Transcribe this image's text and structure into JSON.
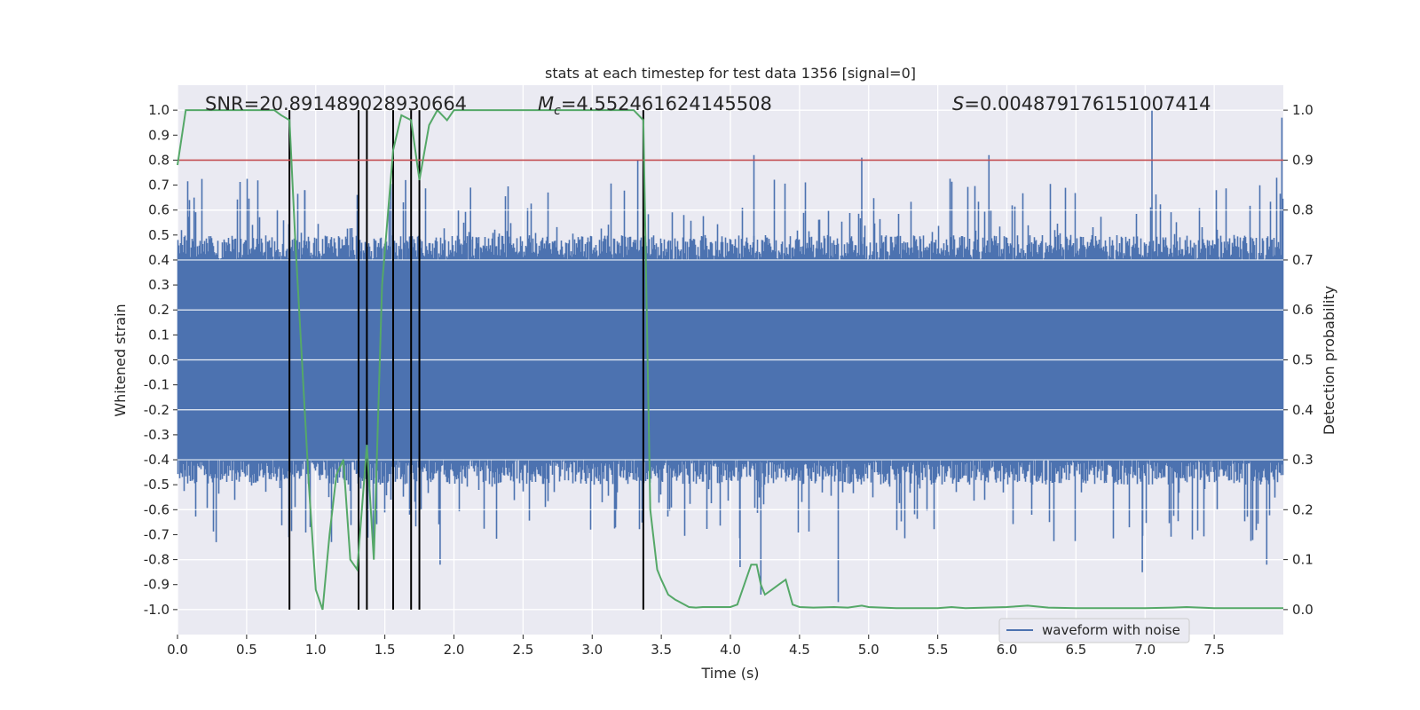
{
  "chart_data": {
    "type": "line",
    "title": "stats at each timestep for test data 1356 [signal=0]",
    "xlabel": "Time (s)",
    "ylabel_left": "Whitened strain",
    "ylabel_right": "Detection probability",
    "xlim": [
      0.0,
      8.0
    ],
    "ylim_left": [
      -1.1,
      1.1
    ],
    "ylim_right": [
      -0.05,
      1.05
    ],
    "x_ticks": [
      "0.0",
      "0.5",
      "1.0",
      "1.5",
      "2.0",
      "2.5",
      "3.0",
      "3.5",
      "4.0",
      "4.5",
      "5.0",
      "5.5",
      "6.0",
      "6.5",
      "7.0",
      "7.5"
    ],
    "y_left_ticks": [
      "1.0",
      "0.9",
      "0.8",
      "0.7",
      "0.6",
      "0.5",
      "0.4",
      "0.3",
      "0.2",
      "0.1",
      "0.0",
      "-0.1",
      "-0.2",
      "-0.3",
      "-0.4",
      "-0.5",
      "-0.6",
      "-0.7",
      "-0.8",
      "-0.9",
      "-1.0"
    ],
    "y_right_ticks": [
      "1.0",
      "0.9",
      "0.8",
      "0.7",
      "0.6",
      "0.5",
      "0.4",
      "0.3",
      "0.2",
      "0.1",
      "0.0"
    ],
    "annotations": {
      "snr": "SNR=20.891489028930664",
      "mc_symbol": "M",
      "mc_sub": "c",
      "mc_value": "=4.552461624145508",
      "s_symbol": "S",
      "s_value": "=0.004879176151007414"
    },
    "threshold": {
      "value": 0.9,
      "color": "#c44e52"
    },
    "vertical_markers": [
      0.81,
      1.31,
      1.37,
      1.56,
      1.69,
      1.75,
      3.37
    ],
    "legend": [
      {
        "label": "waveform with noise",
        "color": "#4c72b0"
      }
    ],
    "series": [
      {
        "name": "waveform with noise",
        "axis": "left",
        "color": "#4c72b0",
        "envelope": {
          "seed": 1356,
          "core_amplitude": 0.4,
          "spike_extremes": [
            {
              "x": 0.12,
              "y": 0.65
            },
            {
              "x": 0.28,
              "y": -0.73
            },
            {
              "x": 0.92,
              "y": 0.68
            },
            {
              "x": 1.65,
              "y": 0.72
            },
            {
              "x": 1.9,
              "y": -0.82
            },
            {
              "x": 2.12,
              "y": 0.69
            },
            {
              "x": 3.33,
              "y": 0.8
            },
            {
              "x": 4.07,
              "y": -0.83
            },
            {
              "x": 4.17,
              "y": 0.82
            },
            {
              "x": 4.22,
              "y": -0.94
            },
            {
              "x": 4.78,
              "y": -0.97
            },
            {
              "x": 4.95,
              "y": 0.81
            },
            {
              "x": 5.87,
              "y": 0.82
            },
            {
              "x": 7.05,
              "y": 1.0
            },
            {
              "x": 6.98,
              "y": -0.85
            },
            {
              "x": 7.88,
              "y": -0.82
            },
            {
              "x": 7.99,
              "y": 0.97
            }
          ]
        }
      },
      {
        "name": "detection probability",
        "axis": "right",
        "color": "#55a868",
        "x": [
          0.0,
          0.06,
          0.12,
          0.2,
          0.3,
          0.5,
          0.7,
          0.75,
          0.81,
          0.85,
          0.9,
          0.95,
          1.0,
          1.05,
          1.1,
          1.15,
          1.2,
          1.25,
          1.3,
          1.37,
          1.42,
          1.48,
          1.56,
          1.62,
          1.69,
          1.75,
          1.82,
          1.88,
          1.95,
          2.0,
          2.05,
          2.1,
          2.15,
          2.2,
          2.3,
          2.5,
          2.7,
          2.9,
          3.0,
          3.1,
          3.2,
          3.3,
          3.37,
          3.42,
          3.47,
          3.5,
          3.55,
          3.6,
          3.7,
          3.75,
          3.8,
          3.9,
          4.0,
          4.05,
          4.1,
          4.15,
          4.19,
          4.22,
          4.25,
          4.3,
          4.35,
          4.4,
          4.45,
          4.5,
          4.6,
          4.75,
          4.85,
          4.95,
          5.0,
          5.2,
          5.5,
          5.6,
          5.7,
          6.0,
          6.15,
          6.3,
          6.5,
          7.0,
          7.2,
          7.3,
          7.5,
          7.8,
          8.0
        ],
        "y": [
          0.89,
          1.0,
          1.0,
          1.0,
          1.0,
          1.0,
          1.0,
          0.99,
          0.98,
          0.75,
          0.5,
          0.25,
          0.04,
          0.0,
          0.15,
          0.27,
          0.3,
          0.1,
          0.08,
          0.33,
          0.1,
          0.65,
          0.92,
          0.99,
          0.98,
          0.86,
          0.97,
          1.0,
          0.98,
          1.0,
          1.0,
          1.0,
          1.0,
          1.0,
          1.0,
          1.0,
          1.0,
          1.0,
          1.0,
          1.0,
          1.0,
          1.0,
          0.98,
          0.2,
          0.08,
          0.06,
          0.03,
          0.02,
          0.005,
          0.004,
          0.005,
          0.005,
          0.005,
          0.01,
          0.05,
          0.09,
          0.09,
          0.05,
          0.03,
          0.04,
          0.05,
          0.06,
          0.01,
          0.005,
          0.004,
          0.005,
          0.004,
          0.008,
          0.005,
          0.003,
          0.003,
          0.005,
          0.003,
          0.005,
          0.008,
          0.004,
          0.003,
          0.003,
          0.004,
          0.005,
          0.003,
          0.003,
          0.003
        ]
      }
    ]
  }
}
